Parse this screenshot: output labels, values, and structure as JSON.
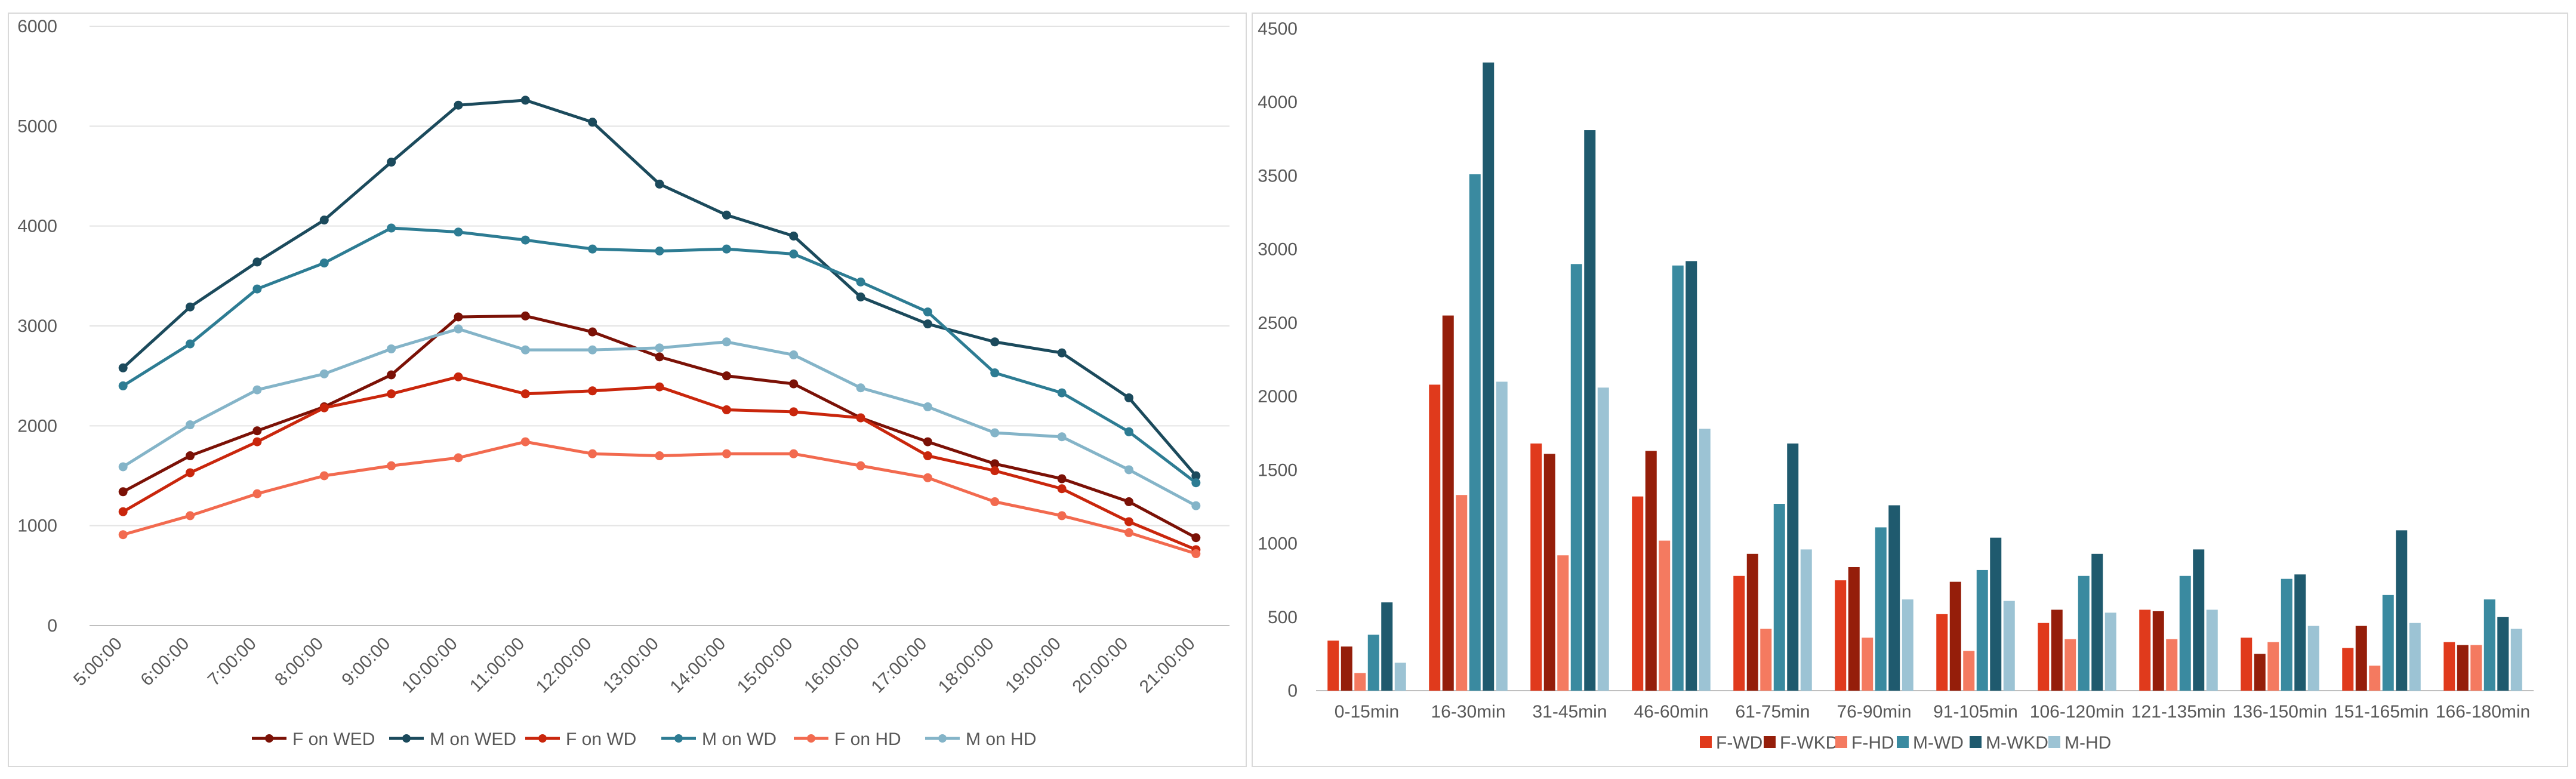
{
  "chart_data": [
    {
      "type": "line",
      "title": "",
      "xlabel": "",
      "ylabel": "",
      "ylim": [
        0,
        6000
      ],
      "yticks": [
        0,
        1000,
        2000,
        3000,
        4000,
        5000,
        6000
      ],
      "yticklabels": [
        "0",
        "1000",
        "2000",
        "3000",
        "4000",
        "5000",
        "6000"
      ],
      "grid": true,
      "legend_position": "bottom",
      "x": [
        "5:00:00",
        "6:00:00",
        "7:00:00",
        "8:00:00",
        "9:00:00",
        "10:00:00",
        "11:00:00",
        "12:00:00",
        "13:00:00",
        "14:00:00",
        "15:00:00",
        "16:00:00",
        "17:00:00",
        "18:00:00",
        "19:00:00",
        "20:00:00",
        "21:00:00"
      ],
      "series": [
        {
          "name": "F on WED",
          "color": "#7b1106",
          "values": [
            1340,
            1700,
            1950,
            2190,
            2510,
            3090,
            3100,
            2940,
            2690,
            2500,
            2420,
            2080,
            1840,
            1620,
            1470,
            1240,
            880
          ]
        },
        {
          "name": "M on WED",
          "color": "#1b4a5c",
          "values": [
            2580,
            3190,
            3640,
            4060,
            4640,
            5210,
            5260,
            5040,
            4420,
            4110,
            3900,
            3290,
            3020,
            2840,
            2730,
            2280,
            1500
          ]
        },
        {
          "name": "F on WD",
          "color": "#c9260c",
          "values": [
            1140,
            1530,
            1840,
            2180,
            2320,
            2490,
            2320,
            2350,
            2390,
            2160,
            2140,
            2080,
            1700,
            1550,
            1370,
            1040,
            760
          ]
        },
        {
          "name": "M on WD",
          "color": "#2d7c93",
          "values": [
            2400,
            2820,
            3370,
            3630,
            3980,
            3940,
            3860,
            3770,
            3750,
            3770,
            3720,
            3440,
            3140,
            2530,
            2330,
            1940,
            1430
          ]
        },
        {
          "name": "F on HD",
          "color": "#f26a4f",
          "values": [
            910,
            1100,
            1320,
            1500,
            1600,
            1680,
            1840,
            1720,
            1700,
            1720,
            1720,
            1600,
            1480,
            1240,
            1100,
            930,
            720
          ]
        },
        {
          "name": "M on HD",
          "color": "#84b4c8",
          "values": [
            1590,
            2010,
            2360,
            2520,
            2770,
            2970,
            2760,
            2760,
            2780,
            2840,
            2710,
            2380,
            2190,
            1930,
            1890,
            1560,
            1200
          ]
        }
      ]
    },
    {
      "type": "bar",
      "title": "",
      "xlabel": "",
      "ylabel": "",
      "ylim": [
        0,
        4500
      ],
      "yticks": [
        0,
        500,
        1000,
        1500,
        2000,
        2500,
        3000,
        3500,
        4000,
        4500
      ],
      "yticklabels": [
        "0",
        "500",
        "1000",
        "1500",
        "2000",
        "2500",
        "3000",
        "3500",
        "4000",
        "4500"
      ],
      "grid": false,
      "legend_position": "bottom",
      "categories": [
        "0-15min",
        "16-30min",
        "31-45min",
        "46-60min",
        "61-75min",
        "76-90min",
        "91-105min",
        "106-120min",
        "121-135min",
        "136-150min",
        "151-165min",
        "166-180min"
      ],
      "series": [
        {
          "name": "F-WD",
          "color": "#e03a1c",
          "values": [
            340,
            2080,
            1680,
            1320,
            780,
            750,
            520,
            460,
            550,
            360,
            290,
            330
          ]
        },
        {
          "name": "F-WKD",
          "color": "#951e0a",
          "values": [
            300,
            2550,
            1610,
            1630,
            930,
            840,
            740,
            550,
            540,
            250,
            440,
            310
          ]
        },
        {
          "name": "F-HD",
          "color": "#f47a60",
          "values": [
            120,
            1330,
            920,
            1020,
            420,
            360,
            270,
            350,
            350,
            330,
            170,
            310
          ]
        },
        {
          "name": "M-WD",
          "color": "#3a8aa0",
          "values": [
            380,
            3510,
            2900,
            2890,
            1270,
            1110,
            820,
            780,
            780,
            760,
            650,
            620
          ]
        },
        {
          "name": "M-WKD",
          "color": "#1f5a6e",
          "values": [
            600,
            4270,
            3810,
            2920,
            1680,
            1260,
            1040,
            930,
            960,
            790,
            1090,
            500
          ]
        },
        {
          "name": "M-HD",
          "color": "#9cc3d4",
          "values": [
            190,
            2100,
            2060,
            1780,
            960,
            620,
            610,
            530,
            550,
            440,
            460,
            420
          ]
        }
      ]
    }
  ]
}
